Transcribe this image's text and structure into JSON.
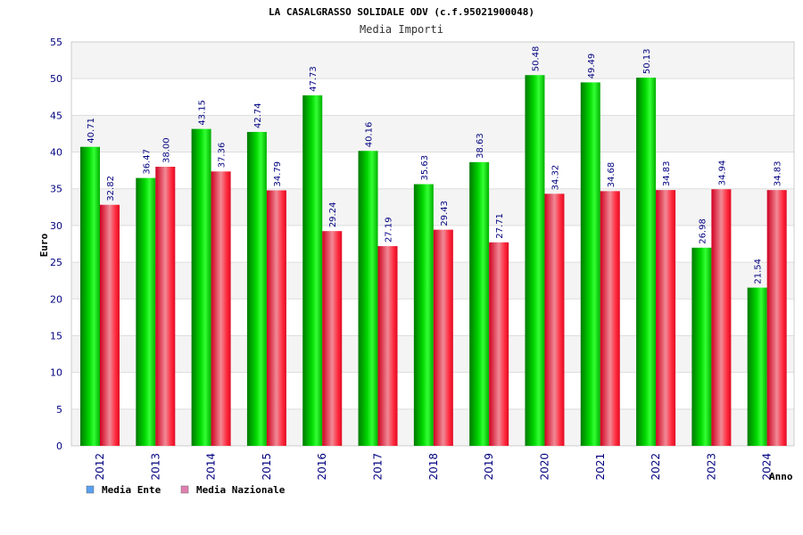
{
  "chart_data": {
    "type": "bar",
    "title": "LA CASALGRASSO SOLIDALE ODV (c.f.95021900048)",
    "subtitle": "Media Importi",
    "xlabel": "Anno",
    "ylabel": "Euro",
    "ylim": [
      0,
      55
    ],
    "ytick_step": 5,
    "grid": true,
    "legend_position": "bottom-left",
    "categories": [
      "2012",
      "2013",
      "2014",
      "2015",
      "2016",
      "2017",
      "2018",
      "2019",
      "2020",
      "2021",
      "2022",
      "2023",
      "2024"
    ],
    "series": [
      {
        "name": "Media Ente",
        "color": "#00cc00",
        "legend_color": "#5aa0f0",
        "values": [
          40.71,
          36.47,
          43.15,
          42.74,
          47.73,
          40.16,
          35.63,
          38.63,
          50.48,
          49.49,
          50.13,
          26.98,
          21.54
        ],
        "labels": [
          "40.71",
          "36.47",
          "43.15",
          "42.74",
          "47.73",
          "40.16",
          "35.63",
          "38.63",
          "50.48",
          "49.49",
          "50.13",
          "26.98",
          "21.54"
        ]
      },
      {
        "name": "Media Nazionale",
        "color": "#ee1133",
        "legend_color": "#e080b0",
        "values": [
          32.82,
          38.0,
          37.36,
          34.79,
          29.24,
          27.19,
          29.43,
          27.71,
          34.32,
          34.68,
          34.83,
          34.94,
          34.83
        ],
        "labels": [
          "32.82",
          "38.00",
          "37.36",
          "34.79",
          "29.24",
          "27.19",
          "29.43",
          "27.71",
          "34.32",
          "34.68",
          "34.83",
          "34.94",
          "34.83"
        ]
      }
    ]
  }
}
